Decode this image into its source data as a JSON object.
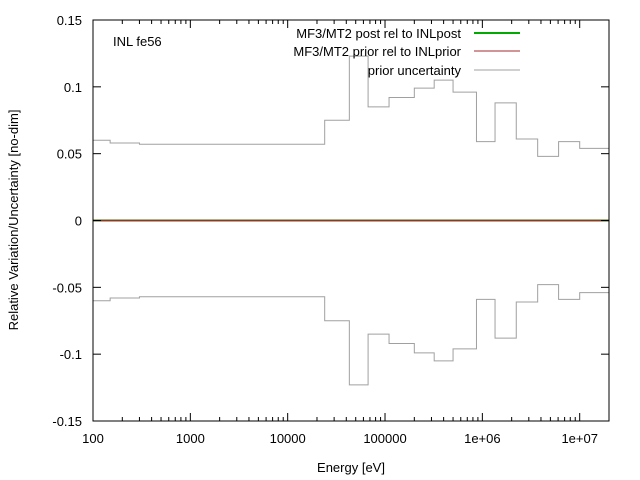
{
  "chart_data": {
    "type": "line",
    "annotation": "INL fe56",
    "xlabel": "Energy [eV]",
    "ylabel": "Relative Variation/Uncertainty [no-dim]",
    "x_scale": "log",
    "xlim": [
      100,
      20000000
    ],
    "ylim": [
      -0.15,
      0.15
    ],
    "grid": false,
    "legend_position": "top-right",
    "x_ticks": [
      {
        "value": 100,
        "label": "100"
      },
      {
        "value": 1000,
        "label": "1000"
      },
      {
        "value": 10000,
        "label": "10000"
      },
      {
        "value": 100000,
        "label": "100000"
      },
      {
        "value": 1000000,
        "label": "1e+06"
      },
      {
        "value": 10000000,
        "label": "1e+07"
      }
    ],
    "y_ticks": [
      {
        "value": 0.15,
        "label": "0.15"
      },
      {
        "value": 0.1,
        "label": "0.1"
      },
      {
        "value": 0.05,
        "label": "0.05"
      },
      {
        "value": 0,
        "label": "0"
      },
      {
        "value": -0.05,
        "label": "-0.05"
      },
      {
        "value": -0.1,
        "label": "-0.1"
      },
      {
        "value": -0.15,
        "label": "-0.15"
      }
    ],
    "series": [
      {
        "name": "MF3/MT2 post rel to INLpost",
        "color": "#00aa00",
        "style": "constant",
        "value": 0
      },
      {
        "name": "MF3/MT2 prior rel to INLprior",
        "color": "#a52a2a",
        "style": "constant",
        "value": 0
      },
      {
        "name": "prior uncertainty",
        "color": "#a0a0a0",
        "style": "step-symmetric",
        "edges": [
          100,
          150,
          300,
          24000,
          43000,
          67000,
          110000,
          200000,
          320000,
          500000,
          870000,
          1350000,
          2230000,
          3700000,
          6070000,
          10000000,
          20000000
        ],
        "values": [
          0.06,
          0.058,
          0.057,
          0.075,
          0.123,
          0.085,
          0.092,
          0.099,
          0.105,
          0.096,
          0.059,
          0.088,
          0.061,
          0.048,
          0.059,
          0.054
        ]
      }
    ]
  }
}
